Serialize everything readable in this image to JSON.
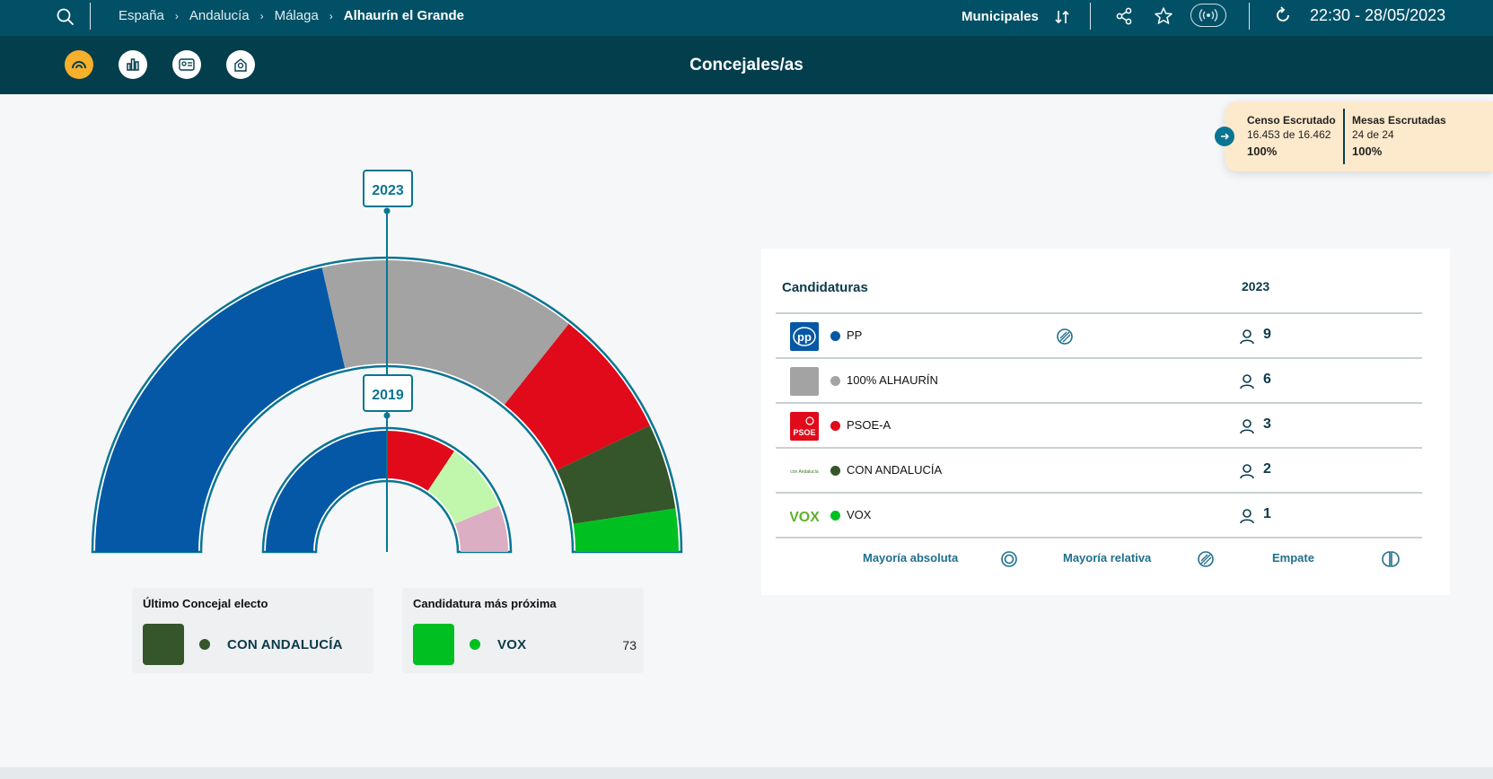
{
  "topbar": {
    "breadcrumbs": [
      "España",
      "Andalucía",
      "Málaga"
    ],
    "current": "Alhaurín el Grande",
    "election": "Municipales",
    "datetime": "22:30 - 28/05/2023"
  },
  "nav": {
    "title": "Concejales/as",
    "buttons": [
      "hemicycle-icon",
      "bar-chart-icon",
      "candidate-list-icon",
      "map-icon"
    ]
  },
  "scrutiny": {
    "censo_label": "Censo Escrutado",
    "censo_value": "16.453 de 16.462",
    "censo_pct": "100%",
    "mesas_label": "Mesas Escrutadas",
    "mesas_value": "24 de 24",
    "mesas_pct": "100%"
  },
  "hemicycle": {
    "outer_year": "2023",
    "inner_year": "2019"
  },
  "colors": {
    "PP": "#0558a5",
    "100% ALHAURÍN": "#a3a3a3",
    "PSOE-A": "#e00a1a",
    "CON ANDALUCÍA": "#35552a",
    "VOX": "#00c021",
    "inner_light_green": "#c1f7ad",
    "inner_pink": "#dcaec3",
    "accent": "#0a7592",
    "topbar": "#025066"
  },
  "last_elected": {
    "title": "Último Concejal electo",
    "party": "CON ANDALUCÍA",
    "color": "#35552a"
  },
  "closest": {
    "title": "Candidatura más próxima",
    "party": "VOX",
    "votes": "73",
    "color": "#00c021"
  },
  "table": {
    "col_candidates": "Candidaturas",
    "col_year": "2023",
    "rows": [
      {
        "party": "PP",
        "seats": "9",
        "color": "#0558a5",
        "logo": "pp-logo-icon",
        "majority": "relative"
      },
      {
        "party": "100% ALHAURÍN",
        "seats": "6",
        "color": "#a3a3a3",
        "logo": "grey-square-logo"
      },
      {
        "party": "PSOE-A",
        "seats": "3",
        "color": "#e00a1a",
        "logo": "psoe-logo-icon"
      },
      {
        "party": "CON ANDALUCÍA",
        "seats": "2",
        "color": "#35552a",
        "logo": "con-andalucia-logo"
      },
      {
        "party": "VOX",
        "seats": "1",
        "color": "#00c021",
        "logo": "vox-logo-icon"
      }
    ],
    "legend": {
      "absolute": "Mayoría absoluta",
      "relative": "Mayoría relativa",
      "tie": "Empate"
    }
  },
  "chart_data": [
    {
      "type": "pie",
      "title": "2023",
      "categories": [
        "PP",
        "100% ALHAURÍN",
        "PSOE-A",
        "CON ANDALUCÍA",
        "VOX"
      ],
      "values": [
        9,
        6,
        3,
        2,
        1
      ]
    },
    {
      "type": "pie",
      "title": "2019",
      "categories": [
        "PP",
        "PSOE-A",
        "light-green party",
        "pink party"
      ],
      "values": [
        8,
        3,
        3,
        2
      ]
    }
  ]
}
